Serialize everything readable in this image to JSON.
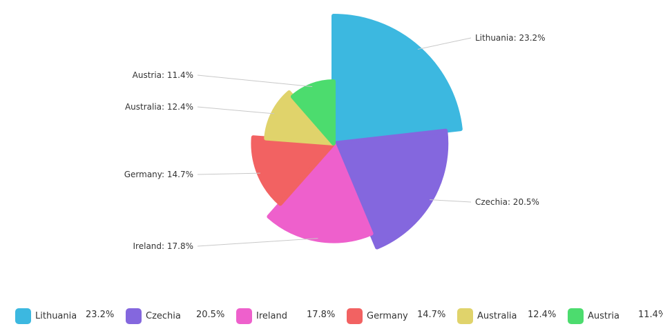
{
  "chart_data": {
    "type": "pie",
    "variant": "variable-radius",
    "title": "",
    "categories": [
      "Lithuania",
      "Czechia",
      "Ireland",
      "Germany",
      "Australia",
      "Austria"
    ],
    "values": [
      23.2,
      20.5,
      17.8,
      14.7,
      12.4,
      11.4
    ],
    "unit": "%",
    "labels": [
      "Lithuania: 23.2%",
      "Czechia: 20.5%",
      "Ireland: 17.8%",
      "Germany: 14.7%",
      "Australia: 12.4%",
      "Austria: 11.4%"
    ],
    "value_labels": [
      "23.2%",
      "20.5%",
      "17.8%",
      "14.7%",
      "12.4%",
      "11.4%"
    ],
    "colors": [
      "#3cb8e0",
      "#8467de",
      "#ee60cc",
      "#f26262",
      "#e0d36b",
      "#4cdc6e"
    ],
    "legend_position": "bottom"
  }
}
